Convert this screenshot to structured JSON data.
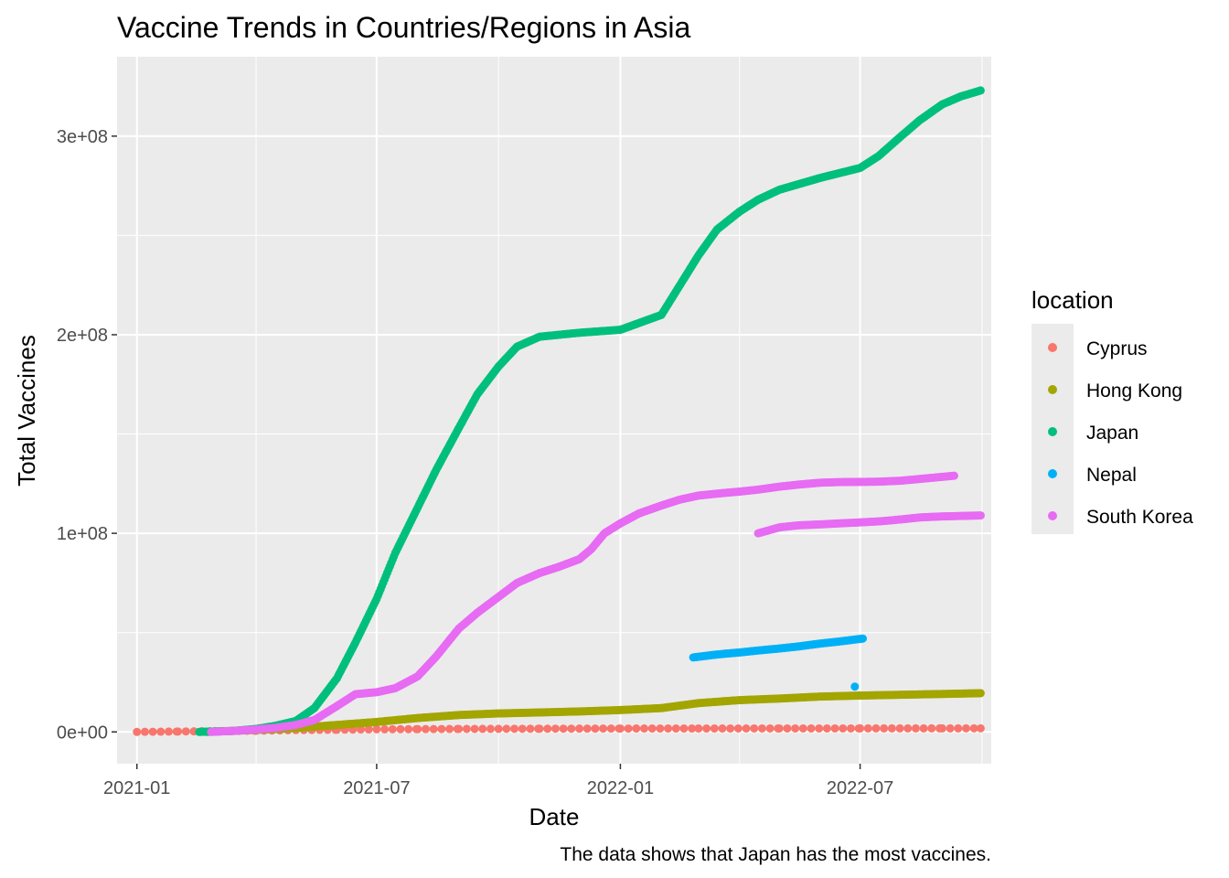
{
  "chart_data": {
    "type": "scatter",
    "title": "Vaccine Trends in Countries/Regions in Asia",
    "xlabel": "Date",
    "ylabel": "Total Vaccines",
    "caption": "The data shows that Japan has the most vaccines.",
    "x_ticks": [
      "2021-01",
      "2021-07",
      "2022-01",
      "2022-07"
    ],
    "y_ticks": [
      "0e+00",
      "1e+08",
      "2e+08",
      "3e+08"
    ],
    "xlim": [
      "2020-12-17",
      "2022-10-08"
    ],
    "ylim": [
      -16000000,
      340000000
    ],
    "grid": true,
    "legend": {
      "title": "location",
      "position": "right"
    },
    "series": [
      {
        "name": "Cyprus",
        "color": "#F8766D",
        "points": [
          [
            "2021-01-01",
            0
          ],
          [
            "2021-02-01",
            200000
          ],
          [
            "2021-03-01",
            400000
          ],
          [
            "2021-04-01",
            600000
          ],
          [
            "2021-05-01",
            900000
          ],
          [
            "2021-06-01",
            1100000
          ],
          [
            "2021-07-01",
            1300000
          ],
          [
            "2021-08-01",
            1400000
          ],
          [
            "2021-09-01",
            1500000
          ],
          [
            "2021-10-01",
            1550000
          ],
          [
            "2021-11-01",
            1600000
          ],
          [
            "2021-12-01",
            1650000
          ],
          [
            "2022-01-01",
            1700000
          ],
          [
            "2022-03-01",
            1720000
          ],
          [
            "2022-05-01",
            1740000
          ],
          [
            "2022-07-01",
            1760000
          ],
          [
            "2022-09-01",
            1780000
          ],
          [
            "2022-09-30",
            1790000
          ]
        ]
      },
      {
        "name": "Hong Kong",
        "color": "#A3A500",
        "points": [
          [
            "2021-02-23",
            0
          ],
          [
            "2021-04-01",
            1000000
          ],
          [
            "2021-05-01",
            2000000
          ],
          [
            "2021-06-01",
            3500000
          ],
          [
            "2021-07-01",
            5000000
          ],
          [
            "2021-08-01",
            7000000
          ],
          [
            "2021-09-01",
            8500000
          ],
          [
            "2021-10-01",
            9300000
          ],
          [
            "2021-11-01",
            9800000
          ],
          [
            "2021-12-01",
            10300000
          ],
          [
            "2022-01-01",
            11000000
          ],
          [
            "2022-02-01",
            12000000
          ],
          [
            "2022-03-01",
            14500000
          ],
          [
            "2022-04-01",
            16000000
          ],
          [
            "2022-05-01",
            16800000
          ],
          [
            "2022-06-01",
            17800000
          ],
          [
            "2022-07-01",
            18300000
          ],
          [
            "2022-08-01",
            18700000
          ],
          [
            "2022-09-01",
            19100000
          ],
          [
            "2022-09-30",
            19500000
          ]
        ]
      },
      {
        "name": "Japan",
        "color": "#00BF7D",
        "points": [
          [
            "2021-02-17",
            0
          ],
          [
            "2021-03-15",
            500000
          ],
          [
            "2021-04-01",
            1500000
          ],
          [
            "2021-04-15",
            3000000
          ],
          [
            "2021-05-01",
            5500000
          ],
          [
            "2021-05-15",
            12000000
          ],
          [
            "2021-06-01",
            27000000
          ],
          [
            "2021-06-15",
            45000000
          ],
          [
            "2021-07-01",
            67000000
          ],
          [
            "2021-07-15",
            90000000
          ],
          [
            "2021-08-01",
            113000000
          ],
          [
            "2021-08-15",
            132000000
          ],
          [
            "2021-09-01",
            153000000
          ],
          [
            "2021-09-15",
            170000000
          ],
          [
            "2021-10-01",
            184000000
          ],
          [
            "2021-10-15",
            194000000
          ],
          [
            "2021-11-01",
            199000000
          ],
          [
            "2021-12-01",
            201000000
          ],
          [
            "2022-01-01",
            202500000
          ],
          [
            "2022-02-01",
            210000000
          ],
          [
            "2022-02-15",
            225000000
          ],
          [
            "2022-03-01",
            240000000
          ],
          [
            "2022-03-15",
            253000000
          ],
          [
            "2022-04-01",
            262000000
          ],
          [
            "2022-04-15",
            268000000
          ],
          [
            "2022-05-01",
            273000000
          ],
          [
            "2022-06-01",
            279000000
          ],
          [
            "2022-07-01",
            284000000
          ],
          [
            "2022-07-15",
            290000000
          ],
          [
            "2022-08-01",
            300000000
          ],
          [
            "2022-08-15",
            308000000
          ],
          [
            "2022-09-01",
            316000000
          ],
          [
            "2022-09-15",
            320000000
          ],
          [
            "2022-09-30",
            323000000
          ]
        ]
      },
      {
        "name": "Nepal",
        "color": "#00B0F6",
        "points": [
          [
            "2022-02-25",
            37500000
          ],
          [
            "2022-03-15",
            39000000
          ],
          [
            "2022-04-01",
            40000000
          ],
          [
            "2022-04-15",
            41000000
          ],
          [
            "2022-05-01",
            42000000
          ],
          [
            "2022-05-15",
            43000000
          ],
          [
            "2022-06-01",
            44500000
          ],
          [
            "2022-06-15",
            45500000
          ],
          [
            "2022-07-03",
            47000000
          ],
          [
            "2022-06-27",
            22800000
          ]
        ]
      },
      {
        "name": "South Korea",
        "color": "#E76BF3",
        "points": [
          [
            "2021-02-26",
            0
          ],
          [
            "2021-03-15",
            500000
          ],
          [
            "2021-04-01",
            1200000
          ],
          [
            "2021-04-15",
            2000000
          ],
          [
            "2021-05-01",
            3500000
          ],
          [
            "2021-05-15",
            6000000
          ],
          [
            "2021-06-01",
            13000000
          ],
          [
            "2021-06-15",
            19000000
          ],
          [
            "2021-07-01",
            20000000
          ],
          [
            "2021-07-15",
            22000000
          ],
          [
            "2021-08-01",
            28000000
          ],
          [
            "2021-08-15",
            38000000
          ],
          [
            "2021-09-01",
            52000000
          ],
          [
            "2021-09-15",
            60000000
          ],
          [
            "2021-10-01",
            68000000
          ],
          [
            "2021-10-15",
            75000000
          ],
          [
            "2021-11-01",
            80000000
          ],
          [
            "2021-11-15",
            83000000
          ],
          [
            "2021-12-01",
            87000000
          ],
          [
            "2021-12-10",
            92000000
          ],
          [
            "2021-12-20",
            100000000
          ],
          [
            "2022-01-01",
            105000000
          ],
          [
            "2022-01-15",
            110000000
          ],
          [
            "2022-02-01",
            114000000
          ],
          [
            "2022-02-15",
            117000000
          ],
          [
            "2022-03-01",
            119000000
          ],
          [
            "2022-03-15",
            120000000
          ],
          [
            "2022-04-01",
            121000000
          ],
          [
            "2022-04-15",
            122000000
          ],
          [
            "2022-05-01",
            123500000
          ],
          [
            "2022-05-15",
            124500000
          ],
          [
            "2022-06-01",
            125500000
          ],
          [
            "2022-06-15",
            125800000
          ],
          [
            "2022-07-15",
            126000000
          ],
          [
            "2022-08-01",
            126500000
          ],
          [
            "2022-09-10",
            129000000
          ],
          [
            "2022-04-15",
            100000000
          ],
          [
            "2022-05-01",
            103000000
          ],
          [
            "2022-05-15",
            104000000
          ],
          [
            "2022-06-01",
            104500000
          ],
          [
            "2022-06-15",
            105000000
          ],
          [
            "2022-07-01",
            105500000
          ],
          [
            "2022-07-15",
            106000000
          ],
          [
            "2022-08-01",
            107000000
          ],
          [
            "2022-08-15",
            108000000
          ],
          [
            "2022-09-01",
            108500000
          ],
          [
            "2022-09-30",
            109000000
          ]
        ]
      }
    ]
  }
}
